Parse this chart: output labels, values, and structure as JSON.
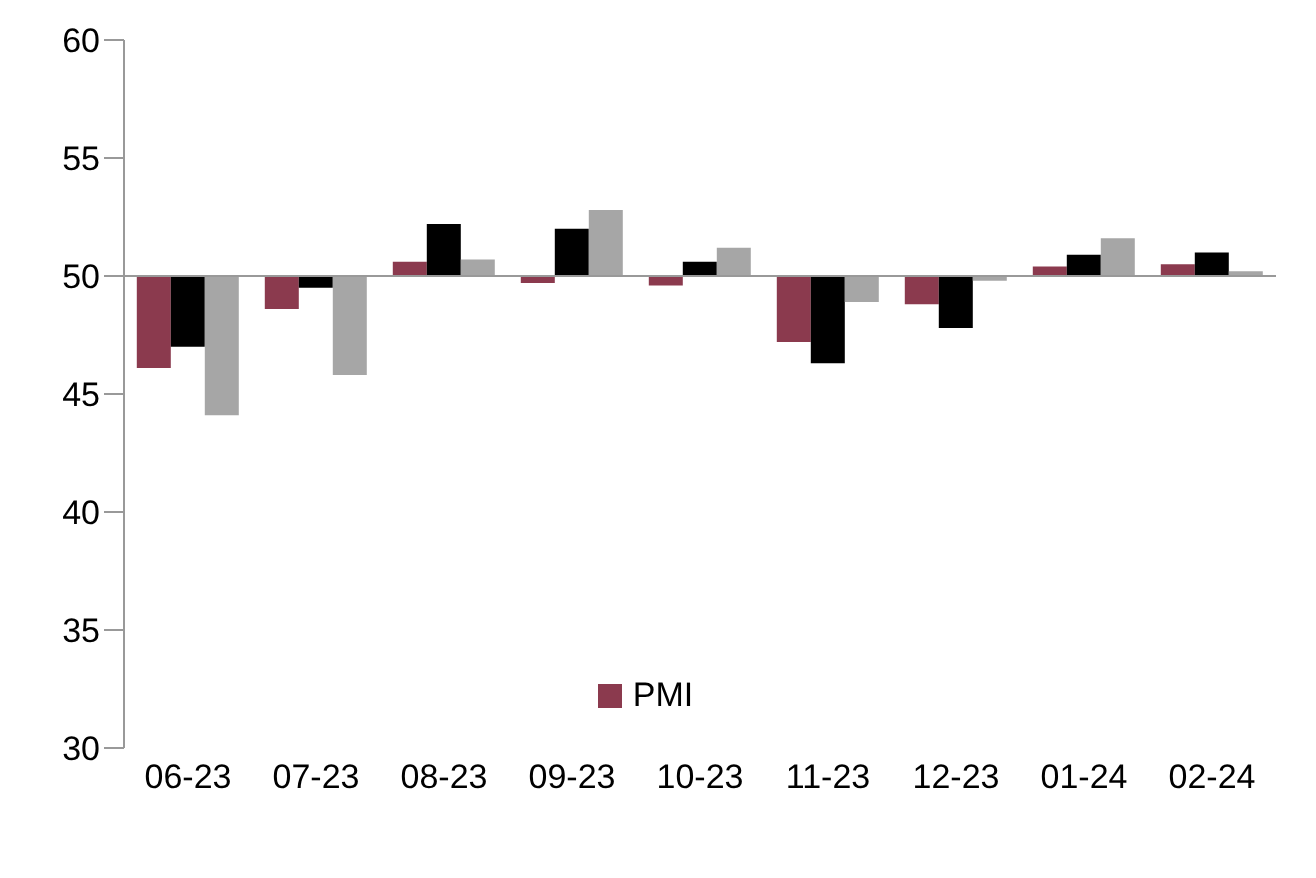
{
  "chart_data": {
    "type": "bar",
    "categories": [
      "06-23",
      "07-23",
      "08-23",
      "09-23",
      "10-23",
      "11-23",
      "12-23",
      "01-24",
      "02-24"
    ],
    "series": [
      {
        "name": "PMI",
        "color": "#8b3a4e",
        "base": [
          50,
          50,
          50,
          50,
          50,
          50,
          50,
          50,
          50
        ],
        "values": [
          -3.9,
          -1.4,
          0.6,
          -0.3,
          -0.4,
          -2.8,
          -1.2,
          0.4,
          0.5
        ]
      },
      {
        "color": "#000000",
        "base": [
          50,
          50,
          50,
          50,
          50,
          50,
          50,
          50,
          50
        ],
        "values": [
          -3.0,
          -0.5,
          2.2,
          2.0,
          0.6,
          -3.7,
          -2.2,
          0.9,
          1.0
        ]
      },
      {
        "color": "#a6a6a6",
        "base": [
          50,
          50,
          50,
          50,
          50,
          50,
          50,
          50,
          50
        ],
        "values": [
          -5.9,
          -4.2,
          0.7,
          2.8,
          1.2,
          -1.1,
          -0.2,
          1.6,
          0.2
        ]
      }
    ],
    "ylim": [
      30,
      60
    ],
    "yticks": [
      30,
      35,
      40,
      45,
      50,
      55,
      60
    ],
    "ref_lines": [
      {
        "axis": "y",
        "value": 50,
        "color": "#999999"
      }
    ],
    "grid": false,
    "legend": "bottom"
  }
}
